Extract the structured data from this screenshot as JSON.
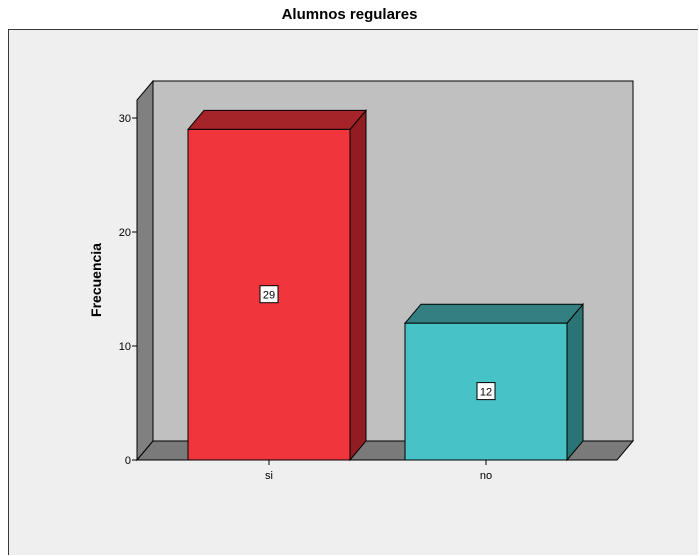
{
  "chart_data": {
    "type": "bar",
    "title": "Alumnos regulares",
    "xlabel": "",
    "ylabel": "Frecuencia",
    "categories": [
      "si",
      "no"
    ],
    "values": [
      29,
      12
    ],
    "data_labels": [
      "29",
      "12"
    ],
    "ylim": [
      0,
      32
    ],
    "yticks": [
      0,
      10,
      20,
      30
    ],
    "grid": false,
    "legend": "none",
    "three_d": true,
    "colors": {
      "bars": [
        "#f0353d",
        "#47c2c6"
      ],
      "bars_dark": [
        "#911d22",
        "#2b7476"
      ],
      "bars_top": [
        "#a4242a",
        "#337f82"
      ],
      "wall_back": "#c0c0c0",
      "wall_side": "#808080",
      "floor": "#7a7a7a",
      "frame_background": "#efefef",
      "page_background": "#ffffff"
    }
  }
}
